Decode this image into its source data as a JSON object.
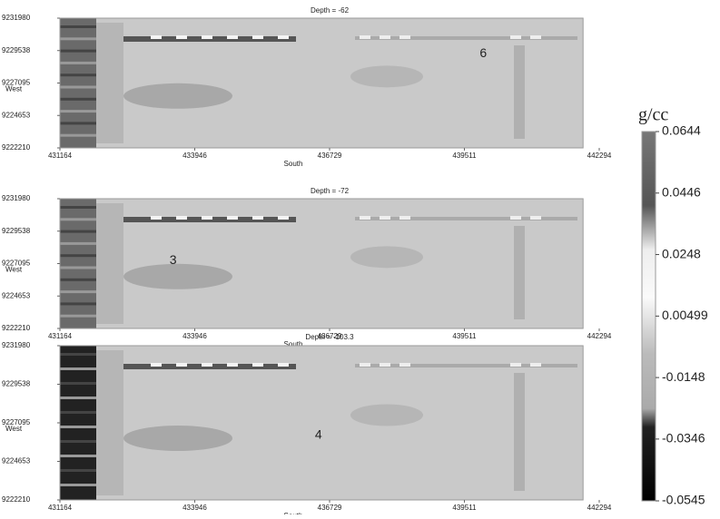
{
  "chart_data": [
    {
      "type": "heatmap",
      "title": "Depth = -62",
      "xlabel": "South",
      "ylabel": "West",
      "xlim": [
        431164,
        442294
      ],
      "xticks": [
        431164,
        433946,
        436729,
        439511,
        442294
      ],
      "ylim": [
        9222210,
        9231980
      ],
      "yticks": [
        9222210,
        9224653,
        9227095,
        9229538,
        9231980
      ],
      "annotations": [
        {
          "text": "6",
          "x": 439900,
          "y": 9229300
        }
      ]
    },
    {
      "type": "heatmap",
      "title": "Depth = -72",
      "xlabel": "South",
      "ylabel": "West",
      "xlim": [
        431164,
        442294
      ],
      "xticks": [
        431164,
        433946,
        436729,
        439511,
        442294
      ],
      "ylim": [
        9222210,
        9231980
      ],
      "yticks": [
        9222210,
        9224653,
        9227095,
        9229538,
        9231980
      ],
      "annotations": [
        {
          "text": "3",
          "x": 433500,
          "y": 9227300
        }
      ]
    },
    {
      "type": "heatmap",
      "title": "Depth = -103.3",
      "xlabel": "South",
      "ylabel": "West",
      "xlim": [
        431164,
        442294
      ],
      "xticks": [
        431164,
        433946,
        436729,
        439511,
        442294
      ],
      "ylim": [
        9222210,
        9231980
      ],
      "yticks": [
        9222210,
        9224653,
        9227095,
        9229538,
        9231980
      ],
      "annotations": [
        {
          "text": "4",
          "x": 436500,
          "y": 9226300
        }
      ]
    }
  ],
  "colorbar": {
    "label": "g/cc",
    "lim": [
      -0.0545,
      0.0644
    ],
    "ticks": [
      0.0644,
      0.0446,
      0.0248,
      0.00499,
      -0.0148,
      -0.0346,
      -0.0545
    ]
  }
}
